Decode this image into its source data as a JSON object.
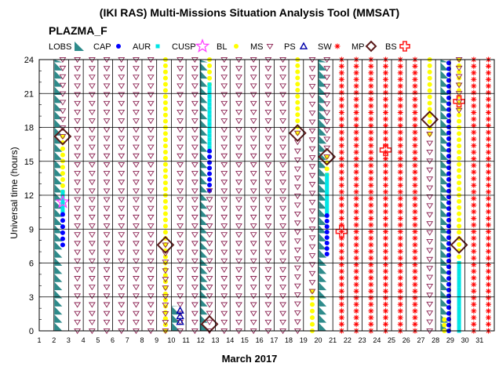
{
  "chart_data": {
    "type": "scatter",
    "title": "(IKI RAS) Multi-Missions Situation Analysis Tool (MMSAT)",
    "subtitle": "PLAZMA_F",
    "xlabel": "March 2017",
    "ylabel": "Universal time (hours)",
    "xlim": [
      1,
      32
    ],
    "ylim": [
      0,
      24
    ],
    "x_ticks": [
      "1",
      "2",
      "3",
      "4",
      "5",
      "6",
      "7",
      "8",
      "9",
      "10",
      "11",
      "12",
      "13",
      "14",
      "15",
      "16",
      "17",
      "18",
      "19",
      "20",
      "21",
      "22",
      "23",
      "24",
      "25",
      "26",
      "27",
      "28",
      "29",
      "30",
      "31"
    ],
    "y_ticks": [
      "0",
      "3",
      "6",
      "9",
      "12",
      "15",
      "18",
      "21",
      "24"
    ],
    "grid": true,
    "legend_position": "top",
    "legend": [
      {
        "key": "LOBS",
        "label": "LOBS",
        "symbol": "lobs",
        "color": "#2e8b8b"
      },
      {
        "key": "CAP",
        "label": "CAP",
        "symbol": "dot",
        "color": "#0000ff"
      },
      {
        "key": "AUR",
        "label": "AUR",
        "symbol": "square",
        "color": "#00e5e5"
      },
      {
        "key": "CUSP",
        "label": "CUSP",
        "symbol": "star",
        "color": "#ff44ff"
      },
      {
        "key": "BL",
        "label": "BL",
        "symbol": "dot",
        "color": "#ffff00"
      },
      {
        "key": "MS",
        "label": "MS",
        "symbol": "invtri",
        "color": "#8b2252"
      },
      {
        "key": "PS",
        "label": "PS",
        "symbol": "tri",
        "color": "#0000aa"
      },
      {
        "key": "SW",
        "label": "SW",
        "symbol": "asterisk",
        "color": "#ff0000"
      },
      {
        "key": "MP",
        "label": "MP",
        "symbol": "diamond",
        "color": "#5a1a1a"
      },
      {
        "key": "BS",
        "label": "BS",
        "symbol": "cross",
        "color": "#ff2222"
      }
    ],
    "series": [
      {
        "key": "LOBS",
        "values": [
          [
            2.3,
            0,
            24
          ],
          [
            10.3,
            0,
            2.2
          ],
          [
            12.2,
            0,
            24
          ],
          [
            20.3,
            0,
            24
          ],
          [
            28.6,
            0,
            24
          ]
        ]
      },
      {
        "key": "CAP",
        "values": [
          [
            2.6,
            7.6,
            10.3
          ],
          [
            12.6,
            12.4,
            15.9
          ],
          [
            20.6,
            6.8,
            10.2
          ],
          [
            28.9,
            0,
            23.7
          ]
        ]
      },
      {
        "key": "AUR",
        "values": [
          [
            2.6,
            10.3,
            12.3
          ],
          [
            12.6,
            15.9,
            21.8
          ],
          [
            20.6,
            10.2,
            13.8
          ],
          [
            29.6,
            0,
            6
          ]
        ]
      },
      {
        "key": "CUSP",
        "values": [
          [
            2.6,
            11.4,
            11.4
          ]
        ]
      },
      {
        "key": "BL",
        "values": [
          [
            2.6,
            12.3,
            17.2
          ],
          [
            9.6,
            0,
            24
          ],
          [
            12.6,
            21.8,
            24
          ],
          [
            18.6,
            17.5,
            24
          ],
          [
            19.6,
            0,
            3.5
          ],
          [
            20.6,
            13.8,
            15.4
          ],
          [
            27.6,
            17.4,
            24
          ],
          [
            28.6,
            0,
            1
          ],
          [
            29.6,
            6,
            24
          ]
        ]
      },
      {
        "key": "MS",
        "values": [
          [
            2.6,
            17.2,
            24
          ],
          [
            3.6,
            0,
            24
          ],
          [
            4.6,
            0,
            24
          ],
          [
            5.6,
            0,
            24
          ],
          [
            6.6,
            0,
            24
          ],
          [
            7.6,
            0,
            24
          ],
          [
            8.6,
            0,
            24
          ],
          [
            9.6,
            0,
            7.6
          ],
          [
            10.6,
            0,
            24
          ],
          [
            11.6,
            0,
            24
          ],
          [
            12.6,
            0,
            12.4
          ],
          [
            13.6,
            0,
            24
          ],
          [
            14.6,
            0,
            24
          ],
          [
            15.6,
            0,
            24
          ],
          [
            16.6,
            0,
            24
          ],
          [
            17.6,
            0,
            24
          ],
          [
            18.6,
            0,
            17.5
          ],
          [
            19.6,
            3.5,
            24
          ],
          [
            20.6,
            15.4,
            24
          ],
          [
            27.6,
            0,
            17.4
          ],
          [
            29.6,
            19.5,
            24
          ]
        ]
      },
      {
        "key": "PS",
        "values": [
          [
            10.6,
            0.8,
            1.8
          ]
        ]
      },
      {
        "key": "SW",
        "values": [
          [
            21.6,
            0,
            24
          ],
          [
            22.6,
            0,
            24
          ],
          [
            23.6,
            0,
            24
          ],
          [
            24.6,
            0,
            24
          ],
          [
            25.6,
            0,
            24
          ],
          [
            26.6,
            0,
            24
          ],
          [
            30.6,
            0,
            24
          ],
          [
            31.6,
            0,
            24
          ]
        ]
      },
      {
        "key": "MP",
        "values": [
          [
            2.6,
            17.2
          ],
          [
            9.6,
            7.6
          ],
          [
            12.6,
            0.6
          ],
          [
            18.6,
            17.5
          ],
          [
            20.6,
            15.4
          ],
          [
            27.6,
            18.7
          ],
          [
            29.6,
            7.6
          ]
        ]
      },
      {
        "key": "BS",
        "values": [
          [
            21.6,
            8.8
          ],
          [
            24.6,
            16
          ],
          [
            29.6,
            20.3
          ]
        ]
      }
    ]
  }
}
